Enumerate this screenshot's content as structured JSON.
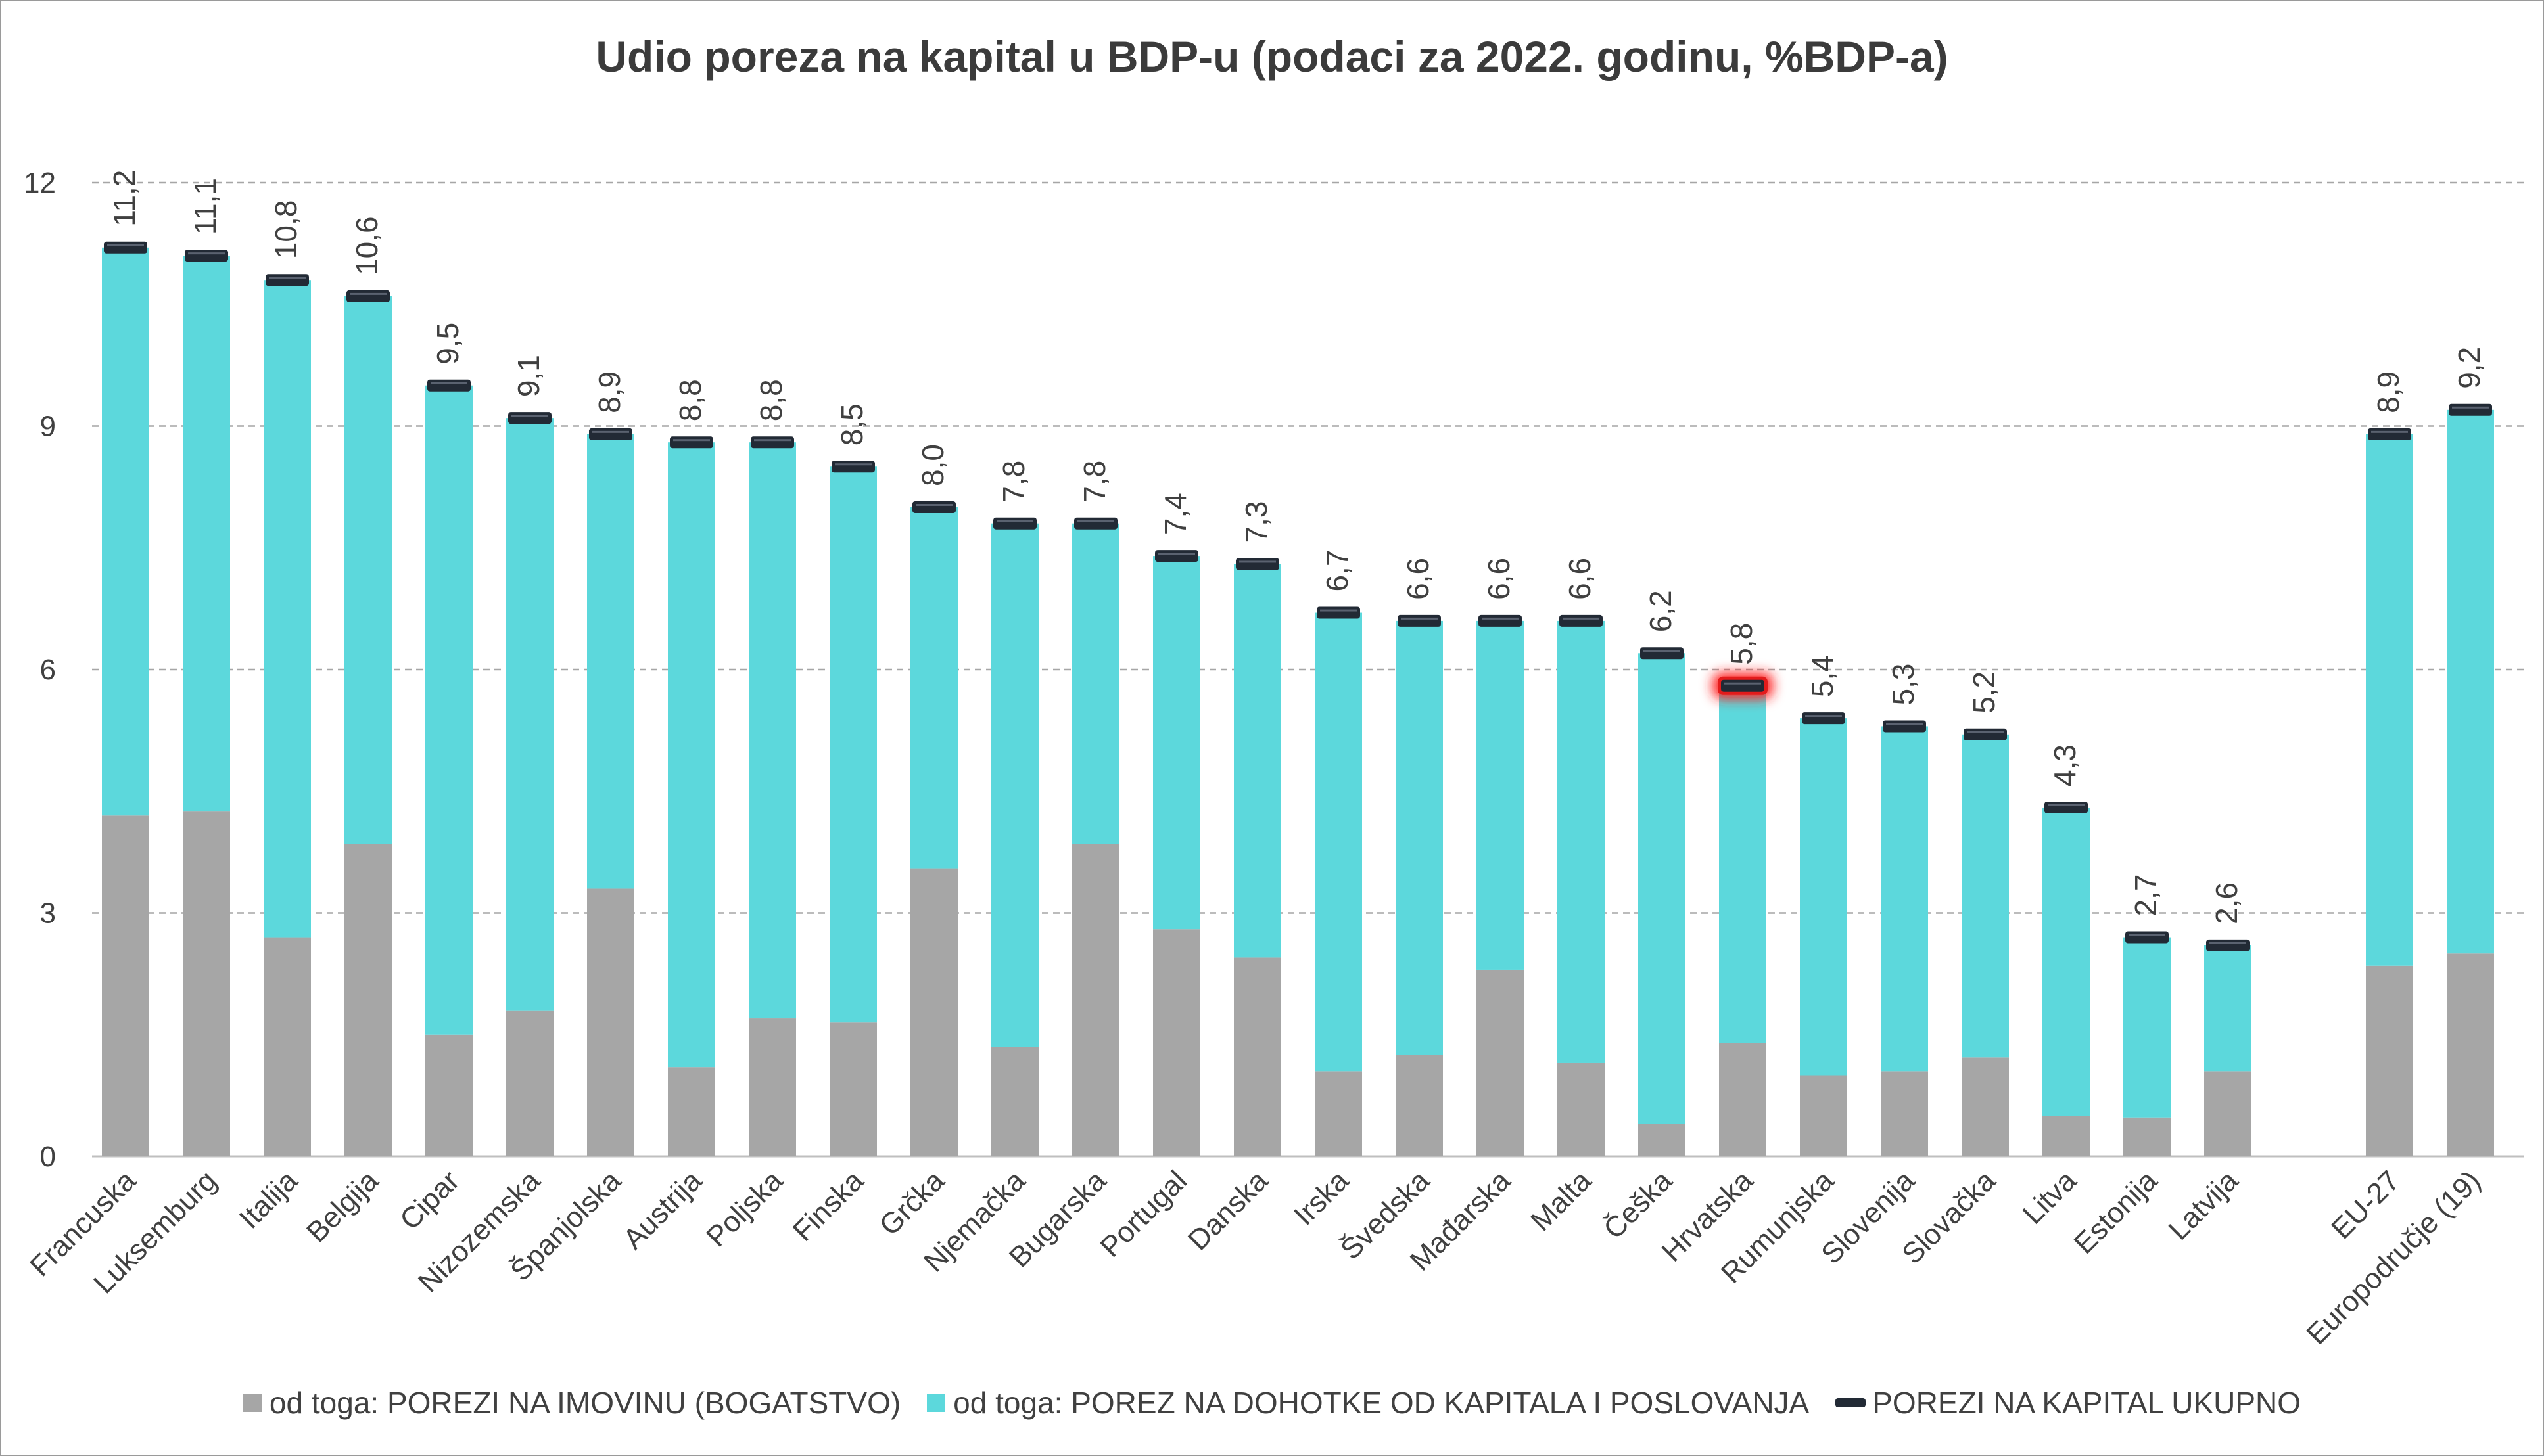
{
  "chart_data": {
    "type": "bar",
    "title": "Udio poreza na kapital u BDP-u (podaci za 2022. godinu, %BDP-a)",
    "ylim": [
      0,
      12
    ],
    "yticks": [
      "0",
      "3",
      "6",
      "9",
      "12"
    ],
    "ytick_values": [
      0,
      3,
      6,
      9,
      12
    ],
    "grid": true,
    "legend_position": "bottom",
    "highlighted_category": "Hrvatska",
    "categories": [
      "Francuska",
      "Luksemburg",
      "Italija",
      "Belgija",
      "Cipar",
      "Nizozemska",
      "Španjolska",
      "Austrija",
      "Poljska",
      "Finska",
      "Grčka",
      "Njemačka",
      "Bugarska",
      "Portugal",
      "Danska",
      "Irska",
      "Švedska",
      "Mađarska",
      "Malta",
      "Češka",
      "Hrvatska",
      "Rumunjska",
      "Slovenija",
      "Slovačka",
      "Litva",
      "Estonija",
      "Latvija",
      "EU-27",
      "Europodručje (19)"
    ],
    "series": [
      {
        "name": "od toga: POREZI NA IMOVINU (BOGATSTVO)",
        "kind": "stacked-bar",
        "color": "#a6a6a6",
        "values": [
          4.2,
          4.25,
          2.7,
          3.85,
          1.5,
          1.8,
          3.3,
          1.1,
          1.7,
          1.65,
          3.55,
          1.35,
          3.85,
          2.8,
          2.45,
          1.05,
          1.25,
          2.3,
          1.15,
          0.4,
          1.4,
          1.0,
          1.05,
          1.22,
          0.5,
          0.48,
          1.05,
          2.35,
          2.5
        ]
      },
      {
        "name": "od toga: POREZ NA DOHOTKE OD KAPITALA I POSLOVANJA",
        "kind": "stacked-bar",
        "color": "#5cd8dc",
        "values": [
          7.0,
          6.85,
          8.1,
          6.75,
          8.0,
          7.3,
          5.6,
          7.7,
          7.1,
          6.85,
          4.45,
          6.45,
          3.95,
          4.6,
          4.85,
          5.65,
          5.35,
          4.3,
          5.45,
          5.8,
          4.4,
          4.4,
          4.25,
          3.98,
          3.8,
          2.22,
          1.55,
          6.55,
          6.7
        ]
      },
      {
        "name": "POREZI NA KAPITAL UKUPNO",
        "kind": "marker",
        "color": "#222a35",
        "values": [
          11.2,
          11.1,
          10.8,
          10.6,
          9.5,
          9.1,
          8.9,
          8.8,
          8.8,
          8.5,
          8.0,
          7.8,
          7.8,
          7.4,
          7.3,
          6.7,
          6.6,
          6.6,
          6.6,
          6.2,
          5.8,
          5.4,
          5.3,
          5.2,
          4.3,
          2.7,
          2.6,
          8.9,
          9.2
        ],
        "labels": [
          "11,2",
          "11,1",
          "10,8",
          "10,6",
          "9,5",
          "9,1",
          "8,9",
          "8,8",
          "8,8",
          "8,5",
          "8,0",
          "7,8",
          "7,8",
          "7,4",
          "7,3",
          "6,7",
          "6,6",
          "6,6",
          "6,6",
          "6,2",
          "5,8",
          "5,4",
          "5,3",
          "5,2",
          "4,3",
          "2,7",
          "2,6",
          "8,9",
          "9,2"
        ]
      }
    ]
  },
  "legend": {
    "items": [
      "od toga: POREZI NA IMOVINU (BOGATSTVO)",
      "od toga: POREZ NA DOHOTKE OD KAPITALA I POSLOVANJA",
      "POREZI NA KAPITAL UKUPNO"
    ],
    "colors": [
      "#a6a6a6",
      "#5cd8dc",
      "#222a35"
    ]
  }
}
